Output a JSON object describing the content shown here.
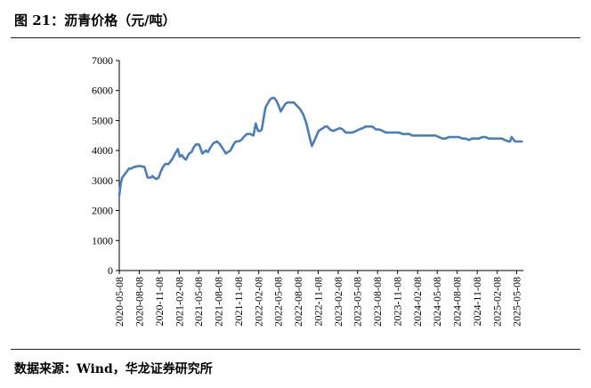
{
  "figure": {
    "title": "图 21：沥青价格（元/吨）",
    "source": "数据来源：Wind，华龙证券研究所"
  },
  "chart_data": {
    "type": "line",
    "title": "图 21：沥青价格（元/吨）",
    "xlabel": "",
    "ylabel": "",
    "ylim": [
      0,
      7000
    ],
    "yticks": [
      0,
      1000,
      2000,
      3000,
      4000,
      5000,
      6000,
      7000
    ],
    "xlim": [
      "2020-05-08",
      "2025-06-08"
    ],
    "xticks": [
      "2020-05-08",
      "2020-08-08",
      "2020-11-08",
      "2021-02-08",
      "2021-05-08",
      "2021-08-08",
      "2021-11-08",
      "2022-02-08",
      "2022-05-08",
      "2022-08-08",
      "2022-11-08",
      "2023-02-08",
      "2023-05-08",
      "2023-08-08",
      "2023-11-08",
      "2024-02-08",
      "2024-05-08",
      "2024-08-08",
      "2024-11-08",
      "2025-02-08",
      "2025-05-08"
    ],
    "grid": false,
    "legend": "none",
    "line_color": "#4a7ebb",
    "series": [
      {
        "name": "",
        "x": [
          "2020-05-08",
          "2020-05-15",
          "2020-05-22",
          "2020-06-01",
          "2020-06-12",
          "2020-06-22",
          "2020-07-01",
          "2020-07-15",
          "2020-08-01",
          "2020-08-15",
          "2020-09-01",
          "2020-09-15",
          "2020-10-01",
          "2020-10-08",
          "2020-10-15",
          "2020-10-25",
          "2020-11-05",
          "2020-11-15",
          "2020-11-25",
          "2020-12-05",
          "2020-12-20",
          "2021-01-05",
          "2021-01-20",
          "2021-02-01",
          "2021-02-10",
          "2021-02-20",
          "2021-03-01",
          "2021-03-10",
          "2021-03-25",
          "2021-04-05",
          "2021-04-15",
          "2021-04-25",
          "2021-05-10",
          "2021-05-25",
          "2021-06-10",
          "2021-06-20",
          "2021-07-01",
          "2021-07-15",
          "2021-08-01",
          "2021-08-15",
          "2021-09-01",
          "2021-09-10",
          "2021-09-20",
          "2021-10-01",
          "2021-10-15",
          "2021-10-25",
          "2021-11-05",
          "2021-11-20",
          "2021-12-01",
          "2021-12-15",
          "2022-01-01",
          "2022-01-15",
          "2022-01-25",
          "2022-02-05",
          "2022-02-15",
          "2022-02-22",
          "2022-03-01",
          "2022-03-05",
          "2022-03-12",
          "2022-03-20",
          "2022-04-01",
          "2022-04-10",
          "2022-04-20",
          "2022-05-01",
          "2022-05-10",
          "2022-05-20",
          "2022-06-01",
          "2022-06-10",
          "2022-06-20",
          "2022-07-01",
          "2022-07-10",
          "2022-07-20",
          "2022-08-01",
          "2022-08-15",
          "2022-09-01",
          "2022-09-15",
          "2022-10-01",
          "2022-10-10",
          "2022-10-20",
          "2022-11-01",
          "2022-11-10",
          "2022-11-20",
          "2022-12-01",
          "2022-12-10",
          "2022-12-20",
          "2023-01-01",
          "2023-01-15",
          "2023-02-01",
          "2023-02-15",
          "2023-03-01",
          "2023-03-15",
          "2023-04-01",
          "2023-04-15",
          "2023-05-01",
          "2023-05-15",
          "2023-06-01",
          "2023-06-15",
          "2023-07-01",
          "2023-07-15",
          "2023-08-01",
          "2023-08-15",
          "2023-09-01",
          "2023-09-15",
          "2023-10-01",
          "2023-10-15",
          "2023-11-01",
          "2023-11-15",
          "2023-12-01",
          "2023-12-15",
          "2024-01-01",
          "2024-01-15",
          "2024-02-01",
          "2024-02-15",
          "2024-03-01",
          "2024-03-15",
          "2024-04-01",
          "2024-04-15",
          "2024-05-01",
          "2024-05-15",
          "2024-06-01",
          "2024-06-15",
          "2024-07-01",
          "2024-07-15",
          "2024-08-01",
          "2024-08-15",
          "2024-09-01",
          "2024-09-15",
          "2024-10-01",
          "2024-10-15",
          "2024-11-01",
          "2024-11-15",
          "2024-12-01",
          "2024-12-15",
          "2025-01-01",
          "2025-01-15",
          "2025-02-01",
          "2025-02-15",
          "2025-03-01",
          "2025-03-15",
          "2025-04-01",
          "2025-04-08",
          "2025-04-15",
          "2025-05-01",
          "2025-05-15",
          "2025-06-01"
        ],
        "values": [
          2500,
          2900,
          3100,
          3200,
          3300,
          3400,
          3400,
          3450,
          3480,
          3480,
          3450,
          3100,
          3100,
          3150,
          3100,
          3050,
          3100,
          3300,
          3450,
          3550,
          3550,
          3700,
          3900,
          4050,
          3800,
          3850,
          3750,
          3700,
          3900,
          3950,
          4100,
          4200,
          4200,
          3900,
          4000,
          3950,
          4100,
          4250,
          4300,
          4200,
          4000,
          3900,
          3950,
          4000,
          4200,
          4300,
          4300,
          4350,
          4450,
          4550,
          4550,
          4500,
          4900,
          4650,
          4650,
          4700,
          5000,
          5200,
          5450,
          5550,
          5700,
          5750,
          5750,
          5650,
          5500,
          5300,
          5450,
          5550,
          5600,
          5600,
          5600,
          5600,
          5500,
          5400,
          5200,
          4900,
          4400,
          4150,
          4300,
          4500,
          4650,
          4700,
          4750,
          4800,
          4800,
          4700,
          4650,
          4700,
          4750,
          4700,
          4600,
          4600,
          4600,
          4650,
          4700,
          4750,
          4800,
          4800,
          4800,
          4700,
          4700,
          4650,
          4600,
          4600,
          4600,
          4600,
          4600,
          4550,
          4550,
          4550,
          4500,
          4500,
          4500,
          4500,
          4500,
          4500,
          4500,
          4500,
          4450,
          4400,
          4400,
          4450,
          4450,
          4450,
          4450,
          4400,
          4400,
          4350,
          4400,
          4400,
          4400,
          4450,
          4450,
          4400,
          4400,
          4400,
          4400,
          4400,
          4350,
          4300,
          4300,
          4450,
          4300,
          4300,
          4300
        ]
      }
    ]
  }
}
